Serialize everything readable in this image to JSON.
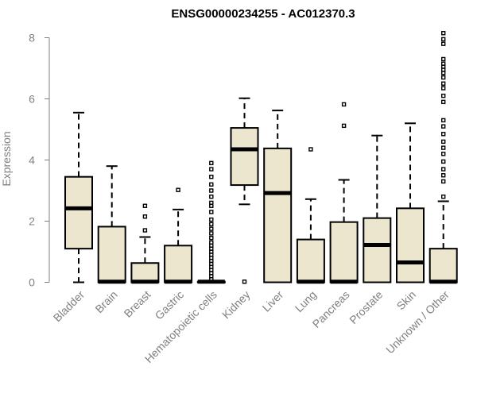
{
  "chart_data": {
    "type": "boxplot",
    "title": "ENSG00000234255 - AC012370.3",
    "xlabel": "",
    "ylabel": "Expression",
    "ylim": [
      0,
      8.3
    ],
    "yticks": [
      0,
      2,
      4,
      6,
      8
    ],
    "grid": false,
    "colors": {
      "box_fill": "#ede6cf",
      "stroke": "#000000",
      "axis_text": "#808080"
    },
    "categories": [
      "Bladder",
      "Brain",
      "Breast",
      "Gastric",
      "Hematopoietic cells",
      "Kidney",
      "Liver",
      "Lung",
      "Pancreas",
      "Prostate",
      "Skin",
      "Unknown / Other"
    ],
    "boxes": [
      {
        "category": "Bladder",
        "whisker_low": 0.0,
        "q1": 1.1,
        "median": 2.42,
        "q3": 3.45,
        "whisker_high": 5.55,
        "outliers": []
      },
      {
        "category": "Brain",
        "whisker_low": 0.0,
        "q1": 0.0,
        "median": 0.02,
        "q3": 1.82,
        "whisker_high": 3.8,
        "outliers": []
      },
      {
        "category": "Breast",
        "whisker_low": 0.0,
        "q1": 0.0,
        "median": 0.02,
        "q3": 0.63,
        "whisker_high": 1.48,
        "outliers": [
          1.7,
          2.15,
          2.5
        ]
      },
      {
        "category": "Gastric",
        "whisker_low": 0.0,
        "q1": 0.0,
        "median": 0.02,
        "q3": 1.2,
        "whisker_high": 2.38,
        "outliers": [
          3.02
        ]
      },
      {
        "category": "Hematopoietic cells",
        "whisker_low": 0.0,
        "q1": 0.0,
        "median": 0.02,
        "q3": 0.02,
        "whisker_high": 0.02,
        "outliers": [
          0.1,
          0.2,
          0.3,
          0.4,
          0.5,
          0.6,
          0.7,
          0.8,
          0.9,
          1.0,
          1.1,
          1.2,
          1.3,
          1.45,
          1.6,
          1.75,
          1.9,
          2.05,
          2.3,
          2.5,
          2.6,
          2.8,
          3.0,
          3.2,
          3.45,
          3.7,
          3.9
        ]
      },
      {
        "category": "Kidney",
        "whisker_low": 2.55,
        "q1": 3.18,
        "median": 4.35,
        "q3": 5.05,
        "whisker_high": 6.02,
        "outliers": [
          0.02
        ]
      },
      {
        "category": "Liver",
        "whisker_low": 0.0,
        "q1": 0.0,
        "median": 2.92,
        "q3": 4.38,
        "whisker_high": 5.62,
        "outliers": []
      },
      {
        "category": "Lung",
        "whisker_low": 0.0,
        "q1": 0.0,
        "median": 0.02,
        "q3": 1.4,
        "whisker_high": 2.72,
        "outliers": [
          4.35
        ]
      },
      {
        "category": "Pancreas",
        "whisker_low": 0.0,
        "q1": 0.0,
        "median": 0.02,
        "q3": 1.97,
        "whisker_high": 3.35,
        "outliers": [
          5.12,
          5.82
        ]
      },
      {
        "category": "Prostate",
        "whisker_low": 0.0,
        "q1": 0.0,
        "median": 1.22,
        "q3": 2.1,
        "whisker_high": 4.8,
        "outliers": []
      },
      {
        "category": "Skin",
        "whisker_low": 0.0,
        "q1": 0.0,
        "median": 0.65,
        "q3": 2.42,
        "whisker_high": 5.2,
        "outliers": []
      },
      {
        "category": "Unknown / Other",
        "whisker_low": 0.0,
        "q1": 0.0,
        "median": 0.02,
        "q3": 1.1,
        "whisker_high": 2.65,
        "outliers": [
          2.8,
          3.3,
          3.5,
          3.7,
          3.95,
          4.2,
          4.4,
          4.6,
          4.85,
          5.1,
          5.3,
          5.9,
          6.1,
          6.35,
          6.5,
          6.7,
          6.85,
          6.95,
          7.05,
          7.15,
          7.3,
          7.8,
          7.95,
          8.15
        ]
      }
    ]
  }
}
